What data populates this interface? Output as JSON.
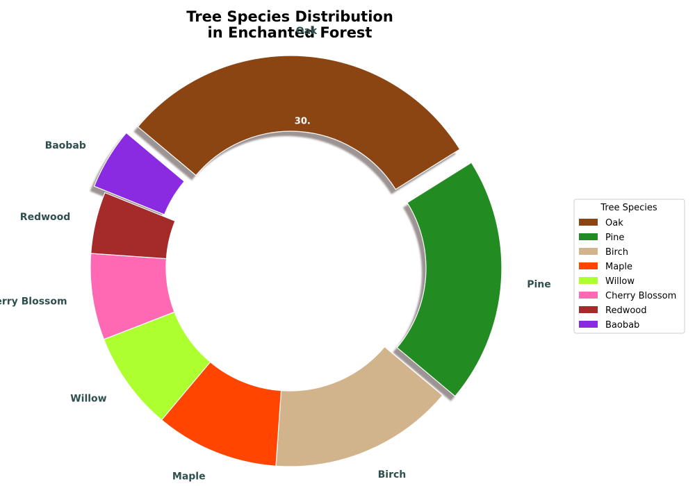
{
  "chart_data": {
    "type": "pie",
    "variant": "donut",
    "title": "Tree Species Distribution\nin Enchanted Forest",
    "categories": [
      "Oak",
      "Pine",
      "Birch",
      "Maple",
      "Willow",
      "Cherry Blossom",
      "Redwood",
      "Baobab"
    ],
    "values": [
      30,
      20,
      15,
      10,
      8,
      7,
      5,
      5
    ],
    "colors": [
      "#8b4513",
      "#228b22",
      "#d2b48c",
      "#ff4500",
      "#adff2f",
      "#ff69b4",
      "#a52a2a",
      "#8a2be2"
    ],
    "exploded": [
      "Oak",
      "Pine",
      "Baobab"
    ],
    "start_angle_deg": 140,
    "direction": "clockwise",
    "visible_percent_label": "30.",
    "legend": {
      "title": "Tree Species",
      "placement": "center-right"
    }
  }
}
